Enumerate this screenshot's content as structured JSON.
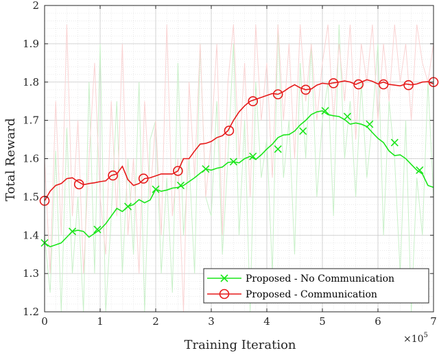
{
  "chart_data": {
    "type": "line",
    "xlabel": "Training Iteration",
    "ylabel": "Total Reward",
    "x_exponent_label": "×10",
    "x_exponent_power": "5",
    "x_scale": 100000,
    "xlim": [
      0,
      7
    ],
    "ylim": [
      1.2,
      2.0
    ],
    "xticks": [
      0,
      1,
      2,
      3,
      4,
      5,
      6,
      7
    ],
    "yticks": [
      1.2,
      1.3,
      1.4,
      1.5,
      1.6,
      1.7,
      1.8,
      1.9,
      2.0
    ],
    "grid": true,
    "legend_position": "bottom-right",
    "series": [
      {
        "name": "Proposed - No Communication",
        "color": "#19e619",
        "raw_color": "#c8f0c8",
        "marker": "x",
        "x": [
          0,
          0.1,
          0.2,
          0.3,
          0.4,
          0.5,
          0.6,
          0.7,
          0.8,
          0.9,
          1.0,
          1.1,
          1.2,
          1.3,
          1.4,
          1.5,
          1.6,
          1.7,
          1.8,
          1.9,
          2.0,
          2.1,
          2.2,
          2.3,
          2.4,
          2.5,
          2.6,
          2.7,
          2.8,
          2.9,
          3.0,
          3.1,
          3.2,
          3.3,
          3.4,
          3.5,
          3.6,
          3.7,
          3.8,
          3.9,
          4.0,
          4.1,
          4.2,
          4.3,
          4.4,
          4.5,
          4.6,
          4.7,
          4.8,
          4.9,
          5.0,
          5.1,
          5.2,
          5.3,
          5.4,
          5.5,
          5.6,
          5.7,
          5.8,
          5.9,
          6.0,
          6.1,
          6.2,
          6.3,
          6.4,
          6.5,
          6.6,
          6.7,
          6.8,
          6.9,
          7.0
        ],
        "y": [
          1.38,
          1.37,
          1.375,
          1.38,
          1.395,
          1.41,
          1.413,
          1.41,
          1.395,
          1.405,
          1.415,
          1.43,
          1.45,
          1.47,
          1.462,
          1.475,
          1.48,
          1.493,
          1.485,
          1.492,
          1.52,
          1.515,
          1.518,
          1.523,
          1.525,
          1.53,
          1.54,
          1.55,
          1.562,
          1.573,
          1.57,
          1.575,
          1.578,
          1.59,
          1.592,
          1.589,
          1.6,
          1.606,
          1.598,
          1.61,
          1.625,
          1.638,
          1.655,
          1.662,
          1.663,
          1.672,
          1.688,
          1.7,
          1.715,
          1.722,
          1.725,
          1.715,
          1.712,
          1.71,
          1.702,
          1.69,
          1.693,
          1.69,
          1.684,
          1.668,
          1.653,
          1.642,
          1.62,
          1.608,
          1.61,
          1.6,
          1.585,
          1.57,
          1.56,
          1.53,
          1.525
        ],
        "marker_x": [
          0,
          0.5,
          0.95,
          1.5,
          2.0,
          2.45,
          2.9,
          3.4,
          3.75,
          4.2,
          4.65,
          5.05,
          5.45,
          5.85,
          6.3,
          6.75
        ],
        "marker_y": [
          1.38,
          1.41,
          1.415,
          1.475,
          1.52,
          1.53,
          1.573,
          1.592,
          1.606,
          1.625,
          1.672,
          1.725,
          1.71,
          1.69,
          1.642,
          1.57
        ],
        "raw_y": [
          1.4,
          1.25,
          1.62,
          1.2,
          1.68,
          1.3,
          1.5,
          1.2,
          1.8,
          1.3,
          1.9,
          1.2,
          1.45,
          1.75,
          1.3,
          1.6,
          1.35,
          1.8,
          1.2,
          1.65,
          1.7,
          1.3,
          1.55,
          1.25,
          1.85,
          1.4,
          1.6,
          1.3,
          1.9,
          1.5,
          1.45,
          1.75,
          1.35,
          1.6,
          1.9,
          1.4,
          1.7,
          1.2,
          1.8,
          1.55,
          1.65,
          1.3,
          1.95,
          1.55,
          1.7,
          1.35,
          1.85,
          1.6,
          1.9,
          1.5,
          1.7,
          1.8,
          1.45,
          1.95,
          1.6,
          1.75,
          1.5,
          1.8,
          1.55,
          1.7,
          1.9,
          1.4,
          1.75,
          1.6,
          1.3,
          1.7,
          1.2,
          1.55,
          1.4,
          1.8,
          1.5
        ]
      },
      {
        "name": "Proposed - Communication",
        "color": "#e61919",
        "raw_color": "#fad2d2",
        "marker": "o",
        "x": [
          0,
          0.1,
          0.2,
          0.3,
          0.4,
          0.5,
          0.6,
          0.7,
          0.8,
          0.9,
          1.0,
          1.1,
          1.2,
          1.3,
          1.4,
          1.5,
          1.6,
          1.7,
          1.8,
          1.9,
          2.0,
          2.1,
          2.2,
          2.3,
          2.4,
          2.5,
          2.6,
          2.7,
          2.8,
          2.9,
          3.0,
          3.1,
          3.2,
          3.3,
          3.4,
          3.5,
          3.6,
          3.7,
          3.8,
          3.9,
          4.0,
          4.1,
          4.2,
          4.3,
          4.4,
          4.5,
          4.6,
          4.7,
          4.8,
          4.9,
          5.0,
          5.1,
          5.2,
          5.3,
          5.4,
          5.5,
          5.6,
          5.7,
          5.8,
          5.9,
          6.0,
          6.1,
          6.2,
          6.3,
          6.4,
          6.5,
          6.6,
          6.7,
          6.8,
          6.9,
          7.0
        ],
        "y": [
          1.49,
          1.515,
          1.53,
          1.535,
          1.548,
          1.55,
          1.54,
          1.532,
          1.535,
          1.537,
          1.54,
          1.542,
          1.556,
          1.56,
          1.58,
          1.545,
          1.53,
          1.535,
          1.548,
          1.55,
          1.555,
          1.56,
          1.56,
          1.56,
          1.568,
          1.6,
          1.6,
          1.62,
          1.638,
          1.64,
          1.645,
          1.655,
          1.66,
          1.673,
          1.7,
          1.722,
          1.738,
          1.75,
          1.755,
          1.76,
          1.765,
          1.77,
          1.768,
          1.775,
          1.785,
          1.793,
          1.785,
          1.78,
          1.782,
          1.792,
          1.797,
          1.795,
          1.798,
          1.8,
          1.803,
          1.8,
          1.794,
          1.8,
          1.806,
          1.802,
          1.795,
          1.8,
          1.794,
          1.792,
          1.79,
          1.795,
          1.793,
          1.795,
          1.8,
          1.801,
          1.795
        ],
        "marker_x": [
          0,
          0.62,
          1.23,
          1.78,
          2.4,
          3.32,
          3.75,
          4.2,
          4.7,
          5.2,
          5.65,
          6.1,
          6.55,
          7.0
        ],
        "marker_y": [
          1.49,
          1.533,
          1.556,
          1.548,
          1.568,
          1.673,
          1.75,
          1.768,
          1.78,
          1.797,
          1.794,
          1.794,
          1.792,
          1.8
        ],
        "raw_y": [
          1.6,
          1.3,
          1.75,
          1.4,
          1.95,
          1.45,
          1.7,
          1.3,
          1.6,
          1.85,
          1.5,
          1.35,
          1.75,
          1.45,
          1.9,
          1.4,
          1.6,
          1.3,
          1.75,
          1.5,
          1.7,
          1.4,
          1.95,
          1.45,
          1.6,
          1.2,
          1.8,
          1.55,
          1.9,
          1.5,
          1.65,
          1.9,
          1.4,
          1.8,
          1.95,
          1.6,
          1.85,
          1.5,
          1.95,
          1.7,
          1.85,
          1.55,
          1.95,
          1.7,
          1.9,
          1.6,
          1.95,
          1.75,
          1.9,
          1.7,
          1.85,
          1.95,
          1.7,
          1.9,
          1.75,
          1.95,
          1.65,
          1.9,
          1.8,
          1.95,
          1.7,
          1.9,
          1.75,
          1.95,
          1.8,
          1.9,
          1.7,
          1.95,
          1.85,
          1.8,
          1.9
        ]
      }
    ]
  }
}
